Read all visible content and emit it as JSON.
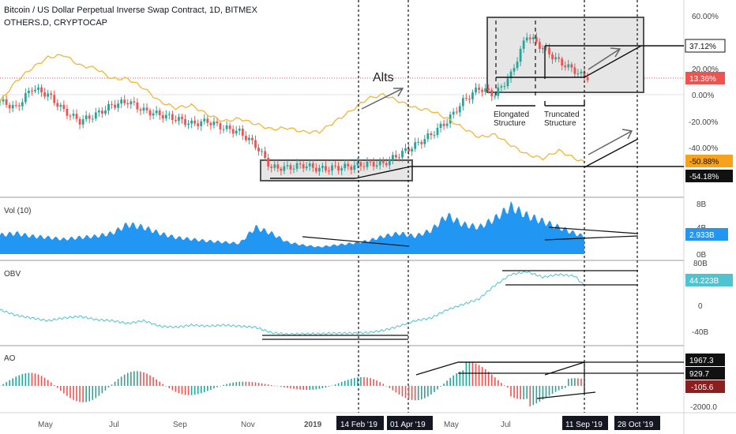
{
  "header": {
    "title": "Bitcoin / US Dollar Perpetual Inverse Swap Contract, 1D, BITMEX",
    "overlay": "OTHERS.D, CRYPTOCAP"
  },
  "colors": {
    "candle_up": "#26a69a",
    "candle_down": "#ef5350",
    "others_line": "#f4b533",
    "volume": "#2196f3",
    "obv": "#4fc3d0",
    "ao_up": "#26a69a",
    "ao_down": "#ef5350",
    "pos_tag": "#ef5350",
    "neg_tag": "#f7a21b"
  },
  "chart_data": [
    {
      "type": "line",
      "name": "price",
      "title": "Bitcoin / US Dollar Perpetual Inverse Swap Contract, 1D, BITMEX",
      "x_ticks": [
        "May",
        "Jul",
        "Sep",
        "Nov",
        "2019",
        "14 Feb '19",
        "01 Apr '19",
        "May",
        "Jul",
        "11 Sep '19",
        "28 Oct '19"
      ],
      "y_ticks": [
        "60.00%",
        "40.00%",
        "20.00%",
        "0.00%",
        "-20.00%",
        "-40.00%"
      ],
      "y_unit": "percent",
      "ylim": [
        -62,
        62
      ],
      "series": [
        {
          "name": "OTHERS.D, CRYPTOCAP",
          "x": [
            0,
            10,
            20,
            30,
            40,
            50,
            60,
            70,
            80,
            90,
            100,
            110,
            120,
            130,
            140,
            150,
            160,
            170,
            180,
            190,
            200,
            210,
            220,
            230,
            240,
            250,
            260,
            270,
            280,
            290,
            300,
            310,
            320,
            330,
            340,
            350,
            360,
            366
          ],
          "values": [
            -5,
            10,
            20,
            28,
            30,
            22,
            20,
            12,
            12,
            5,
            -5,
            -10,
            -8,
            -15,
            -20,
            -18,
            -22,
            -26,
            -25,
            -28,
            -28,
            -20,
            -12,
            -3,
            0,
            -5,
            -10,
            -12,
            -18,
            -25,
            -32,
            -30,
            -38,
            -45,
            -48,
            -42,
            -48,
            -50.88
          ]
        },
        {
          "name": "BTC",
          "x": [
            0,
            10,
            20,
            30,
            40,
            50,
            60,
            70,
            80,
            90,
            100,
            110,
            120,
            130,
            140,
            150,
            160,
            170,
            180,
            190,
            200,
            210,
            220,
            230,
            240,
            250,
            260,
            270,
            280,
            290,
            300,
            310,
            320,
            330,
            340,
            350,
            360,
            366
          ],
          "values": [
            -5,
            -10,
            5,
            0,
            -12,
            -20,
            -15,
            -8,
            -5,
            -12,
            -15,
            -18,
            -22,
            -20,
            -25,
            -28,
            -38,
            -55,
            -55,
            -53,
            -56,
            -55,
            -54,
            -52,
            -52,
            -45,
            -38,
            -30,
            -20,
            -5,
            5,
            0,
            15,
            45,
            35,
            25,
            18,
            13.36
          ]
        }
      ],
      "annotations": [
        "Alts",
        "Elongated Structure",
        "Truncated Structure"
      ],
      "value_tags": [
        "37.12%",
        "13.36%",
        "-50.88%",
        "-54.18%"
      ]
    },
    {
      "type": "area",
      "name": "Vol (10)",
      "y_ticks": [
        "8B",
        "4B",
        "0B"
      ],
      "ylim": [
        0,
        8.5
      ],
      "series": [
        {
          "name": "Vol (10)",
          "x": [
            0,
            10,
            20,
            30,
            40,
            50,
            60,
            70,
            80,
            90,
            100,
            110,
            120,
            130,
            140,
            150,
            160,
            170,
            180,
            190,
            200,
            210,
            220,
            230,
            240,
            250,
            260,
            270,
            280,
            290,
            300,
            310,
            320,
            330,
            340,
            350,
            360,
            366
          ],
          "values": [
            3.2,
            3.5,
            3.0,
            2.8,
            2.5,
            2.8,
            3.0,
            3.5,
            5.0,
            4.5,
            3.5,
            2.8,
            2.5,
            2.2,
            2.0,
            1.8,
            4.5,
            3.5,
            2.0,
            1.5,
            1.2,
            1.5,
            1.8,
            2.2,
            3.0,
            3.5,
            3.0,
            4.0,
            6.5,
            5.0,
            4.5,
            6.0,
            8.0,
            6.5,
            5.5,
            4.5,
            3.5,
            2.933
          ]
        }
      ],
      "value_tags": [
        "2.933B"
      ]
    },
    {
      "type": "line",
      "name": "OBV",
      "y_ticks": [
        "80B",
        "40B",
        "0",
        "-40B"
      ],
      "ylim": [
        -60,
        85
      ],
      "series": [
        {
          "name": "OBV",
          "x": [
            0,
            10,
            20,
            30,
            40,
            50,
            60,
            70,
            80,
            90,
            100,
            110,
            120,
            130,
            140,
            150,
            160,
            170,
            180,
            190,
            200,
            210,
            220,
            230,
            240,
            250,
            260,
            270,
            280,
            290,
            300,
            310,
            320,
            330,
            340,
            350,
            360,
            366
          ],
          "values": [
            0,
            -10,
            -15,
            -20,
            -15,
            -12,
            -18,
            -20,
            -25,
            -20,
            -30,
            -32,
            -28,
            -30,
            -28,
            -30,
            -32,
            -42,
            -45,
            -44,
            -44,
            -43,
            -43,
            -42,
            -38,
            -30,
            -20,
            -15,
            0,
            10,
            20,
            45,
            65,
            70,
            60,
            65,
            62,
            44.223
          ]
        }
      ],
      "value_tags": [
        "44.223B"
      ]
    },
    {
      "type": "bar",
      "name": "AO",
      "y_ticks": [
        "0",
        "-2000.0"
      ],
      "ylim": [
        -2300,
        2300
      ],
      "value_tags": [
        "1967.3",
        "929.7",
        "-105.6"
      ]
    }
  ]
}
